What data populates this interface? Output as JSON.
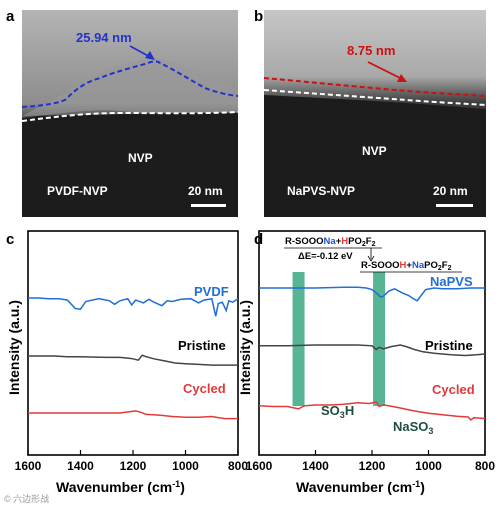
{
  "panels": {
    "a": {
      "label": "a",
      "thickness_label": "25.94 nm",
      "substrate_label": "NVP",
      "sample_label": "PVDF-NVP",
      "scale_bar": "20 nm",
      "colors": {
        "layer_line": "#2233cc",
        "interface_line": "#ffffff"
      }
    },
    "b": {
      "label": "b",
      "thickness_label": "8.75 nm",
      "substrate_label": "NVP",
      "sample_label": "NaPVS-NVP",
      "scale_bar": "20 nm",
      "colors": {
        "layer_line": "#cc1111",
        "interface_line": "#ffffff"
      }
    },
    "c": {
      "label": "c"
    },
    "d": {
      "label": "d",
      "reaction_left": "R-SOOONa+HPO2F2",
      "reaction_energy": "ΔE=-0.12 eV",
      "reaction_right": "R-SOOOH+NaPO2F2",
      "band1_label": "SO3H",
      "band2_label": "NaSO3",
      "band_color": "#3aa783"
    }
  },
  "watermark": "© 六边形战",
  "chart_data": [
    {
      "type": "line",
      "panel": "c",
      "xlabel": "Wavenumber (cm-1)",
      "ylabel": "Intensity (a.u.)",
      "xlim": [
        1600,
        800
      ],
      "xticks": [
        1600,
        1400,
        1200,
        1000,
        800
      ],
      "x_reversed": true,
      "series": [
        {
          "name": "PVDF",
          "color": "#1f6fd6",
          "points": [
            [
              1600,
              0.0
            ],
            [
              1560,
              0.0
            ],
            [
              1520,
              -0.05
            ],
            [
              1480,
              -0.05
            ],
            [
              1450,
              -0.15
            ],
            [
              1420,
              -0.75
            ],
            [
              1400,
              -0.8
            ],
            [
              1380,
              -0.25
            ],
            [
              1330,
              -0.05
            ],
            [
              1290,
              -0.2
            ],
            [
              1270,
              -0.45
            ],
            [
              1250,
              -0.2
            ],
            [
              1220,
              -0.05
            ],
            [
              1205,
              -0.5
            ],
            [
              1190,
              -0.15
            ],
            [
              1160,
              -0.35
            ],
            [
              1140,
              -0.1
            ],
            [
              1120,
              -0.3
            ],
            [
              1090,
              -0.55
            ],
            [
              1070,
              -0.2
            ],
            [
              1050,
              -0.25
            ],
            [
              1020,
              -0.1
            ],
            [
              980,
              -0.05
            ],
            [
              950,
              -0.35
            ],
            [
              930,
              -0.15
            ],
            [
              900,
              -0.05
            ],
            [
              885,
              -1.3
            ],
            [
              875,
              -0.4
            ],
            [
              860,
              -0.3
            ],
            [
              845,
              -0.9
            ],
            [
              835,
              -0.2
            ],
            [
              820,
              -0.3
            ],
            [
              800,
              -0.05
            ]
          ]
        },
        {
          "name": "Pristine",
          "color": "#444444",
          "points": [
            [
              1600,
              -1.0
            ],
            [
              1560,
              -1.0
            ],
            [
              1500,
              -1.0
            ],
            [
              1450,
              -1.05
            ],
            [
              1400,
              -1.05
            ],
            [
              1300,
              -1.1
            ],
            [
              1250,
              -1.1
            ],
            [
              1220,
              -1.15
            ],
            [
              1200,
              -1.2
            ],
            [
              1180,
              -1.3
            ],
            [
              1165,
              -0.95
            ],
            [
              1150,
              -1.05
            ],
            [
              1120,
              -1.2
            ],
            [
              1080,
              -1.35
            ],
            [
              1040,
              -1.5
            ],
            [
              1000,
              -1.55
            ],
            [
              950,
              -1.6
            ],
            [
              900,
              -1.65
            ],
            [
              850,
              -1.65
            ],
            [
              800,
              -1.65
            ]
          ]
        },
        {
          "name": "Cycled",
          "color": "#e23a3a",
          "points": [
            [
              1600,
              -2.0
            ],
            [
              1500,
              -2.0
            ],
            [
              1400,
              -2.0
            ],
            [
              1300,
              -2.0
            ],
            [
              1250,
              -2.0
            ],
            [
              1210,
              -1.9
            ],
            [
              1190,
              -1.85
            ],
            [
              1170,
              -1.95
            ],
            [
              1150,
              -2.1
            ],
            [
              1100,
              -2.15
            ],
            [
              1050,
              -2.25
            ],
            [
              1000,
              -2.3
            ],
            [
              950,
              -2.3
            ],
            [
              900,
              -2.25
            ],
            [
              870,
              -2.35
            ],
            [
              850,
              -2.4
            ],
            [
              800,
              -2.4
            ]
          ]
        }
      ]
    },
    {
      "type": "line",
      "panel": "d",
      "xlabel": "Wavenumber (cm-1)",
      "ylabel": "Intensity (a.u.)",
      "xlim": [
        1600,
        800
      ],
      "xticks": [
        1600,
        1400,
        1200,
        1000,
        800
      ],
      "x_reversed": true,
      "bands": [
        1460,
        1175
      ],
      "series": [
        {
          "name": "NaPVS",
          "color": "#1f6fd6",
          "points": [
            [
              1600,
              0.0
            ],
            [
              1500,
              0.0
            ],
            [
              1400,
              0.0
            ],
            [
              1300,
              0.05
            ],
            [
              1250,
              0.05
            ],
            [
              1220,
              0.0
            ],
            [
              1200,
              -0.1
            ],
            [
              1180,
              -0.4
            ],
            [
              1170,
              -0.6
            ],
            [
              1160,
              -0.55
            ],
            [
              1140,
              -0.2
            ],
            [
              1120,
              -0.05
            ],
            [
              1090,
              -0.35
            ],
            [
              1070,
              -0.5
            ],
            [
              1055,
              -0.7
            ],
            [
              1040,
              -0.85
            ],
            [
              1030,
              -0.6
            ],
            [
              1010,
              -0.1
            ],
            [
              980,
              0.0
            ],
            [
              950,
              -0.05
            ],
            [
              900,
              -0.05
            ],
            [
              850,
              0.0
            ],
            [
              800,
              0.0
            ]
          ]
        },
        {
          "name": "Pristine",
          "color": "#444444",
          "points": [
            [
              1600,
              -1.05
            ],
            [
              1500,
              -1.05
            ],
            [
              1400,
              -1.0
            ],
            [
              1300,
              -1.0
            ],
            [
              1250,
              -1.0
            ],
            [
              1200,
              -1.05
            ],
            [
              1185,
              -1.3
            ],
            [
              1175,
              -1.15
            ],
            [
              1160,
              -1.25
            ],
            [
              1130,
              -1.1
            ],
            [
              1100,
              -1.0
            ],
            [
              1080,
              -1.1
            ],
            [
              1050,
              -1.3
            ],
            [
              1020,
              -1.45
            ],
            [
              980,
              -1.55
            ],
            [
              920,
              -1.65
            ],
            [
              870,
              -1.7
            ],
            [
              830,
              -1.65
            ],
            [
              800,
              -1.6
            ]
          ]
        },
        {
          "name": "Cycled",
          "color": "#e23a3a",
          "points": [
            [
              1600,
              -2.05
            ],
            [
              1550,
              -2.1
            ],
            [
              1500,
              -2.1
            ],
            [
              1460,
              -2.25
            ],
            [
              1440,
              -2.05
            ],
            [
              1400,
              -2.0
            ],
            [
              1350,
              -2.0
            ],
            [
              1300,
              -1.95
            ],
            [
              1250,
              -1.85
            ],
            [
              1210,
              -1.9
            ],
            [
              1185,
              -1.8
            ],
            [
              1175,
              -2.1
            ],
            [
              1160,
              -2.0
            ],
            [
              1140,
              -2.05
            ],
            [
              1100,
              -2.2
            ],
            [
              1050,
              -2.4
            ],
            [
              1000,
              -2.55
            ],
            [
              950,
              -2.65
            ],
            [
              900,
              -2.75
            ],
            [
              860,
              -2.8
            ],
            [
              850,
              -3.0
            ],
            [
              840,
              -2.85
            ],
            [
              800,
              -2.9
            ]
          ]
        }
      ]
    }
  ]
}
